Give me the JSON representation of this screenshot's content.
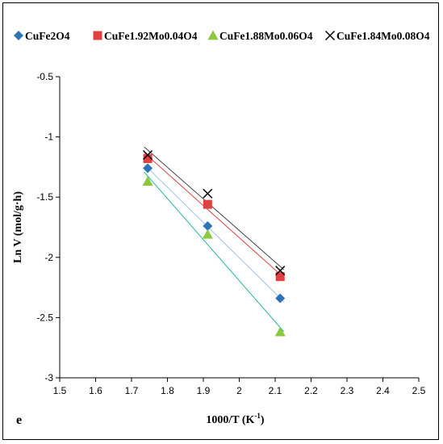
{
  "chart_data": {
    "type": "scatter",
    "panel_label": "e",
    "xlabel": "1000/T (K-1)",
    "xlabel_main": "1000/T (K",
    "xlabel_sup": "-1",
    "xlabel_close": ")",
    "ylabel": "Ln V (mol/g·h)",
    "xlim": [
      1.5,
      2.5
    ],
    "ylim": [
      -3,
      -0.5
    ],
    "x_ticks": [
      "1.5",
      "1.6",
      "1.7",
      "1.8",
      "1.9",
      "2",
      "2.1",
      "2.2",
      "2.3",
      "2.4",
      "2.5"
    ],
    "y_ticks": [
      "-0.5",
      "-1",
      "-1.5",
      "-2",
      "-2.5",
      "-3"
    ],
    "grid": false,
    "legend_position": "top",
    "series": [
      {
        "name": "CuFe2O4",
        "marker": "diamond",
        "color": "#2e75b6",
        "line_color": "#9dc3e6",
        "x": [
          1.745,
          1.912,
          2.114
        ],
        "y": [
          -1.26,
          -1.74,
          -2.34
        ]
      },
      {
        "name": "CuFe1.92Mo0.04O4",
        "marker": "square",
        "color": "#e04040",
        "line_color": "#e04040",
        "x": [
          1.745,
          1.912,
          2.114
        ],
        "y": [
          -1.18,
          -1.56,
          -2.16
        ]
      },
      {
        "name": "CuFe1.88Mo0.06O4",
        "marker": "triangle",
        "color": "#8dc63f",
        "line_color": "#1fb5a0",
        "x": [
          1.745,
          1.912,
          2.114
        ],
        "y": [
          -1.37,
          -1.81,
          -2.62
        ]
      },
      {
        "name": "CuFe1.84Mo0.08O4",
        "marker": "cross",
        "color": "#000000",
        "line_color": "#404040",
        "x": [
          1.745,
          1.912,
          2.114
        ],
        "y": [
          -1.15,
          -1.47,
          -2.11
        ]
      }
    ]
  }
}
